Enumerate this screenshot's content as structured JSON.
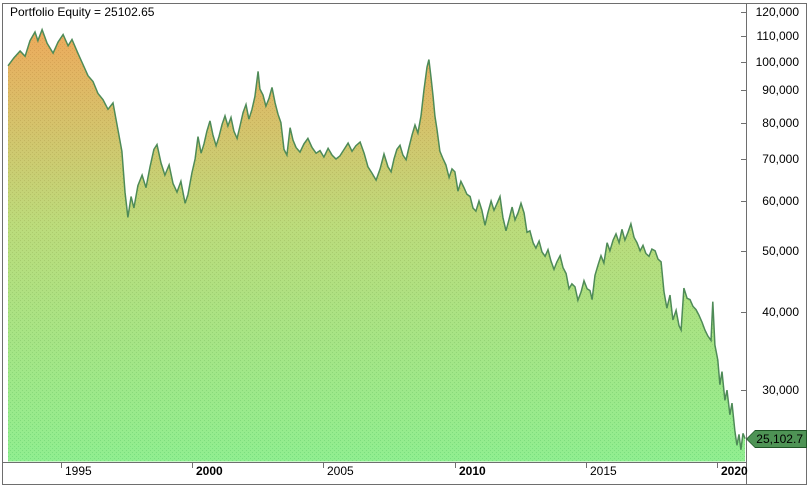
{
  "title": "Portfolio Equity = 25102.65",
  "chart_data": {
    "type": "area",
    "title": "Portfolio Equity = 25102.65",
    "series_name": "Portfolio Equity",
    "last_value": 25102.65,
    "last_value_label": "25,102.7",
    "y_axis": {
      "scale": "log",
      "side": "right",
      "ticks": [
        120000,
        110000,
        100000,
        90000,
        80000,
        70000,
        60000,
        50000,
        40000,
        30000
      ],
      "tick_labels": [
        "120,000",
        "110,000",
        "100,000",
        "90,000",
        "80,000",
        "70,000",
        "60,000",
        "50,000",
        "40,000",
        "30,000"
      ]
    },
    "x_axis": {
      "range_years": [
        1993.0,
        2021.1
      ],
      "ticks": [
        {
          "year": 1995,
          "label": "1995",
          "bold": false
        },
        {
          "year": 2000,
          "label": "2000",
          "bold": true
        },
        {
          "year": 2005,
          "label": "2005",
          "bold": false
        },
        {
          "year": 2010,
          "label": "2010",
          "bold": true
        },
        {
          "year": 2015,
          "label": "2015",
          "bold": false
        },
        {
          "year": 2020,
          "label": "2020",
          "bold": true
        }
      ]
    },
    "colors": {
      "line": "#4E8B57",
      "gradient_top": "#F4A458",
      "gradient_mid": "#BCDB7B",
      "gradient_bottom": "#90EE90",
      "dither_top": "#E6964C",
      "dither_mid": "#AECA6C",
      "dither_bottom": "#79DF80",
      "tag_bg": "#4E9355",
      "tag_border": "#1F5426",
      "tag_text": "#000000",
      "border": "#6e6e6e"
    },
    "points": [
      [
        1992.98,
        98500
      ],
      [
        1993.21,
        101500
      ],
      [
        1993.44,
        104000
      ],
      [
        1993.63,
        102000
      ],
      [
        1993.82,
        108000
      ],
      [
        1994.01,
        111500
      ],
      [
        1994.12,
        108000
      ],
      [
        1994.28,
        112500
      ],
      [
        1994.47,
        107000
      ],
      [
        1994.7,
        103200
      ],
      [
        1994.89,
        107500
      ],
      [
        1995.08,
        110500
      ],
      [
        1995.27,
        106000
      ],
      [
        1995.42,
        108500
      ],
      [
        1995.65,
        103000
      ],
      [
        1995.84,
        99000
      ],
      [
        1996.03,
        95000
      ],
      [
        1996.22,
        93000
      ],
      [
        1996.41,
        89000
      ],
      [
        1996.6,
        87000
      ],
      [
        1996.79,
        84000
      ],
      [
        1996.98,
        86000
      ],
      [
        1997.17,
        78000
      ],
      [
        1997.32,
        72000
      ],
      [
        1997.44,
        62000
      ],
      [
        1997.55,
        56500
      ],
      [
        1997.67,
        61000
      ],
      [
        1997.78,
        58500
      ],
      [
        1997.93,
        63500
      ],
      [
        1998.09,
        66000
      ],
      [
        1998.24,
        63000
      ],
      [
        1998.39,
        68000
      ],
      [
        1998.54,
        72500
      ],
      [
        1998.66,
        73800
      ],
      [
        1998.81,
        69000
      ],
      [
        1998.96,
        66000
      ],
      [
        1999.12,
        68500
      ],
      [
        1999.27,
        64000
      ],
      [
        1999.42,
        62000
      ],
      [
        1999.57,
        64500
      ],
      [
        1999.73,
        59500
      ],
      [
        1999.84,
        61500
      ],
      [
        1999.99,
        66500
      ],
      [
        2000.11,
        70000
      ],
      [
        2000.22,
        76000
      ],
      [
        2000.34,
        71500
      ],
      [
        2000.45,
        74000
      ],
      [
        2000.56,
        77500
      ],
      [
        2000.68,
        80500
      ],
      [
        2000.79,
        76500
      ],
      [
        2000.91,
        73500
      ],
      [
        2001.02,
        76000
      ],
      [
        2001.14,
        79500
      ],
      [
        2001.25,
        82000
      ],
      [
        2001.36,
        79000
      ],
      [
        2001.48,
        81500
      ],
      [
        2001.59,
        77500
      ],
      [
        2001.71,
        75500
      ],
      [
        2001.82,
        79000
      ],
      [
        2001.94,
        83000
      ],
      [
        2002.05,
        85500
      ],
      [
        2002.16,
        81000
      ],
      [
        2002.28,
        84000
      ],
      [
        2002.39,
        88000
      ],
      [
        2002.51,
        96500
      ],
      [
        2002.58,
        90500
      ],
      [
        2002.7,
        88500
      ],
      [
        2002.81,
        85000
      ],
      [
        2002.93,
        87500
      ],
      [
        2003.04,
        91000
      ],
      [
        2003.16,
        86000
      ],
      [
        2003.27,
        82500
      ],
      [
        2003.38,
        80000
      ],
      [
        2003.5,
        72500
      ],
      [
        2003.61,
        71000
      ],
      [
        2003.73,
        78500
      ],
      [
        2003.84,
        75000
      ],
      [
        2003.96,
        73000
      ],
      [
        2004.11,
        71800
      ],
      [
        2004.26,
        74000
      ],
      [
        2004.41,
        75500
      ],
      [
        2004.57,
        73000
      ],
      [
        2004.72,
        71500
      ],
      [
        2004.87,
        72200
      ],
      [
        2005.02,
        70500
      ],
      [
        2005.18,
        72800
      ],
      [
        2005.33,
        71000
      ],
      [
        2005.48,
        70000
      ],
      [
        2005.63,
        70800
      ],
      [
        2005.79,
        72500
      ],
      [
        2005.94,
        74200
      ],
      [
        2006.09,
        72000
      ],
      [
        2006.24,
        73500
      ],
      [
        2006.4,
        74500
      ],
      [
        2006.55,
        71500
      ],
      [
        2006.7,
        68000
      ],
      [
        2006.85,
        66500
      ],
      [
        2007.01,
        64800
      ],
      [
        2007.16,
        67500
      ],
      [
        2007.31,
        71300
      ],
      [
        2007.46,
        68000
      ],
      [
        2007.58,
        66800
      ],
      [
        2007.69,
        70000
      ],
      [
        2007.8,
        72500
      ],
      [
        2007.92,
        73600
      ],
      [
        2008.03,
        71000
      ],
      [
        2008.15,
        69800
      ],
      [
        2008.26,
        73000
      ],
      [
        2008.38,
        76500
      ],
      [
        2008.49,
        79300
      ],
      [
        2008.6,
        77000
      ],
      [
        2008.72,
        82000
      ],
      [
        2008.83,
        90000
      ],
      [
        2008.95,
        98000
      ],
      [
        2009.02,
        100800
      ],
      [
        2009.1,
        94500
      ],
      [
        2009.18,
        88000
      ],
      [
        2009.25,
        82000
      ],
      [
        2009.33,
        78000
      ],
      [
        2009.44,
        72000
      ],
      [
        2009.56,
        70000
      ],
      [
        2009.67,
        68500
      ],
      [
        2009.79,
        65400
      ],
      [
        2009.9,
        67500
      ],
      [
        2010.01,
        66800
      ],
      [
        2010.13,
        62200
      ],
      [
        2010.24,
        64500
      ],
      [
        2010.36,
        63000
      ],
      [
        2010.47,
        61500
      ],
      [
        2010.59,
        61000
      ],
      [
        2010.7,
        58500
      ],
      [
        2010.81,
        57800
      ],
      [
        2010.93,
        60000
      ],
      [
        2011.04,
        58000
      ],
      [
        2011.16,
        54900
      ],
      [
        2011.27,
        57500
      ],
      [
        2011.39,
        60000
      ],
      [
        2011.5,
        58000
      ],
      [
        2011.62,
        59500
      ],
      [
        2011.73,
        61000
      ],
      [
        2011.84,
        56500
      ],
      [
        2011.96,
        53800
      ],
      [
        2012.07,
        56000
      ],
      [
        2012.19,
        58700
      ],
      [
        2012.3,
        56000
      ],
      [
        2012.42,
        57500
      ],
      [
        2012.53,
        59500
      ],
      [
        2012.65,
        57400
      ],
      [
        2012.76,
        53500
      ],
      [
        2012.87,
        53800
      ],
      [
        2012.99,
        51500
      ],
      [
        2013.1,
        50500
      ],
      [
        2013.22,
        51800
      ],
      [
        2013.33,
        49800
      ],
      [
        2013.45,
        49000
      ],
      [
        2013.56,
        50200
      ],
      [
        2013.67,
        48200
      ],
      [
        2013.79,
        46700
      ],
      [
        2013.9,
        48000
      ],
      [
        2014.02,
        49100
      ],
      [
        2014.13,
        47000
      ],
      [
        2014.25,
        46000
      ],
      [
        2014.36,
        43500
      ],
      [
        2014.47,
        44300
      ],
      [
        2014.59,
        43800
      ],
      [
        2014.7,
        41700
      ],
      [
        2014.82,
        43000
      ],
      [
        2014.93,
        44800
      ],
      [
        2015.05,
        43500
      ],
      [
        2015.16,
        43200
      ],
      [
        2015.24,
        41800
      ],
      [
        2015.35,
        45700
      ],
      [
        2015.47,
        47500
      ],
      [
        2015.58,
        49100
      ],
      [
        2015.69,
        47800
      ],
      [
        2015.81,
        51500
      ],
      [
        2015.92,
        50000
      ],
      [
        2016.04,
        52000
      ],
      [
        2016.15,
        53200
      ],
      [
        2016.27,
        51500
      ],
      [
        2016.38,
        54100
      ],
      [
        2016.49,
        52000
      ],
      [
        2016.61,
        53500
      ],
      [
        2016.72,
        55200
      ],
      [
        2016.84,
        52500
      ],
      [
        2016.95,
        51500
      ],
      [
        2017.07,
        50000
      ],
      [
        2017.18,
        51000
      ],
      [
        2017.29,
        49500
      ],
      [
        2017.41,
        49000
      ],
      [
        2017.52,
        50300
      ],
      [
        2017.64,
        50000
      ],
      [
        2017.75,
        48500
      ],
      [
        2017.87,
        48000
      ],
      [
        2017.98,
        43000
      ],
      [
        2018.09,
        40500
      ],
      [
        2018.21,
        42500
      ],
      [
        2018.32,
        38800
      ],
      [
        2018.44,
        40200
      ],
      [
        2018.55,
        38000
      ],
      [
        2018.63,
        37400
      ],
      [
        2018.74,
        43600
      ],
      [
        2018.86,
        42000
      ],
      [
        2018.97,
        41800
      ],
      [
        2019.08,
        40800
      ],
      [
        2019.2,
        40300
      ],
      [
        2019.31,
        39500
      ],
      [
        2019.43,
        38500
      ],
      [
        2019.54,
        37400
      ],
      [
        2019.65,
        36600
      ],
      [
        2019.77,
        36000
      ],
      [
        2019.84,
        41500
      ],
      [
        2019.92,
        35400
      ],
      [
        2020.03,
        33500
      ],
      [
        2020.11,
        30600
      ],
      [
        2020.19,
        32100
      ],
      [
        2020.3,
        28900
      ],
      [
        2020.38,
        30000
      ],
      [
        2020.49,
        27400
      ],
      [
        2020.57,
        28600
      ],
      [
        2020.68,
        25900
      ],
      [
        2020.76,
        24500
      ],
      [
        2020.84,
        25500
      ],
      [
        2020.91,
        24100
      ],
      [
        2020.99,
        25600
      ],
      [
        2021.07,
        25102.65
      ]
    ]
  }
}
